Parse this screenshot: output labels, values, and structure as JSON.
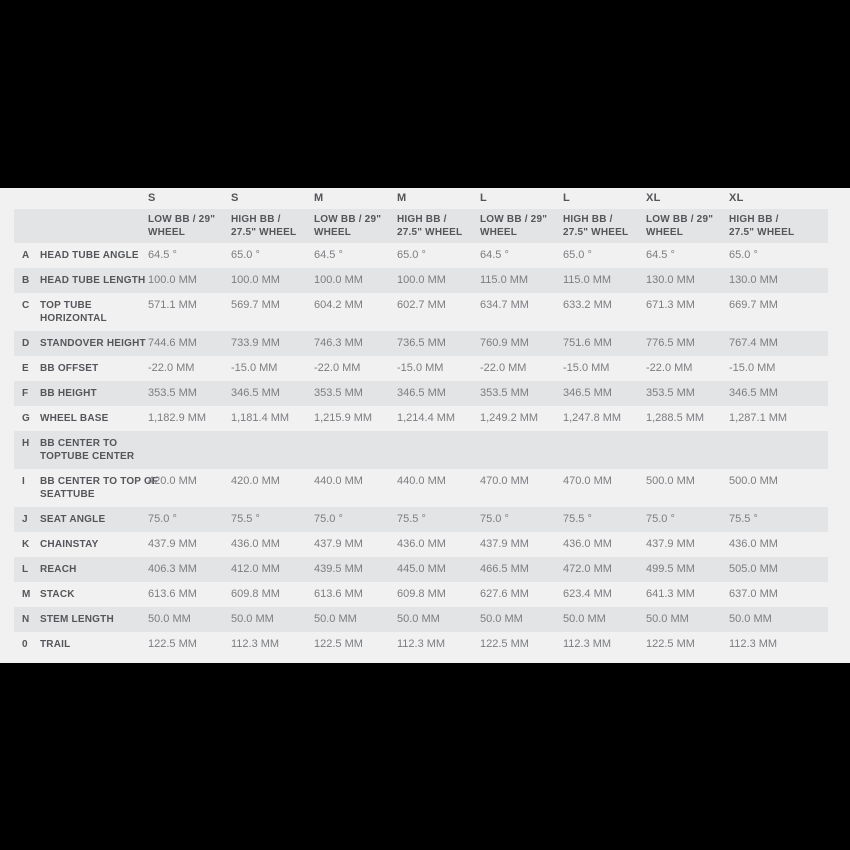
{
  "colors": {
    "page_background": "#000000",
    "content_background": "#f1f1f2",
    "band_background": "#e3e4e5",
    "label_text": "#54565a",
    "value_text": "#7b7d80"
  },
  "table": {
    "size_headers": [
      "S",
      "S",
      "M",
      "M",
      "L",
      "L",
      "XL",
      "XL"
    ],
    "config_headers": [
      [
        "LOW BB / 29\"",
        "WHEEL"
      ],
      [
        "HIGH BB /",
        "27.5\" WHEEL"
      ],
      [
        "LOW BB / 29\"",
        "WHEEL"
      ],
      [
        "HIGH BB /",
        "27.5\" WHEEL"
      ],
      [
        "LOW BB / 29\"",
        "WHEEL"
      ],
      [
        "HIGH BB /",
        "27.5\" WHEEL"
      ],
      [
        "LOW BB / 29\"",
        "WHEEL"
      ],
      [
        "HIGH BB /",
        "27.5\" WHEEL"
      ]
    ],
    "rows": [
      {
        "letter": "A",
        "name_lines": [
          "HEAD TUBE ANGLE"
        ],
        "values": [
          "64.5 °",
          "65.0 °",
          "64.5 °",
          "65.0 °",
          "64.5 °",
          "65.0 °",
          "64.5 °",
          "65.0 °"
        ]
      },
      {
        "letter": "B",
        "name_lines": [
          "HEAD TUBE LENGTH"
        ],
        "values": [
          "100.0 MM",
          "100.0 MM",
          "100.0 MM",
          "100.0 MM",
          "115.0 MM",
          "115.0 MM",
          "130.0 MM",
          "130.0 MM"
        ]
      },
      {
        "letter": "C",
        "name_lines": [
          "TOP TUBE",
          "HORIZONTAL"
        ],
        "values": [
          "571.1 MM",
          "569.7 MM",
          "604.2 MM",
          "602.7 MM",
          "634.7 MM",
          "633.2 MM",
          "671.3 MM",
          "669.7 MM"
        ]
      },
      {
        "letter": "D",
        "name_lines": [
          "STANDOVER HEIGHT"
        ],
        "values": [
          "744.6 MM",
          "733.9 MM",
          "746.3 MM",
          "736.5 MM",
          "760.9 MM",
          "751.6 MM",
          "776.5 MM",
          "767.4 MM"
        ]
      },
      {
        "letter": "E",
        "name_lines": [
          "BB OFFSET"
        ],
        "values": [
          "-22.0 MM",
          "-15.0 MM",
          "-22.0 MM",
          "-15.0 MM",
          "-22.0 MM",
          "-15.0 MM",
          "-22.0 MM",
          "-15.0 MM"
        ]
      },
      {
        "letter": "F",
        "name_lines": [
          "BB HEIGHT"
        ],
        "values": [
          "353.5 MM",
          "346.5 MM",
          "353.5 MM",
          "346.5 MM",
          "353.5 MM",
          "346.5 MM",
          "353.5 MM",
          "346.5 MM"
        ]
      },
      {
        "letter": "G",
        "name_lines": [
          "WHEEL BASE"
        ],
        "values": [
          "1,182.9 MM",
          "1,181.4 MM",
          "1,215.9 MM",
          "1,214.4 MM",
          "1,249.2 MM",
          "1,247.8 MM",
          "1,288.5 MM",
          "1,287.1 MM"
        ]
      },
      {
        "letter": "H",
        "name_lines": [
          "BB CENTER TO",
          "TOPTUBE CENTER"
        ],
        "values": [
          "",
          "",
          "",
          "",
          "",
          "",
          "",
          ""
        ]
      },
      {
        "letter": "I",
        "name_lines": [
          "BB CENTER TO TOP OF",
          "SEATTUBE"
        ],
        "values": [
          "420.0 MM",
          "420.0 MM",
          "440.0 MM",
          "440.0 MM",
          "470.0 MM",
          "470.0 MM",
          "500.0 MM",
          "500.0 MM"
        ]
      },
      {
        "letter": "J",
        "name_lines": [
          "SEAT ANGLE"
        ],
        "values": [
          "75.0 °",
          "75.5 °",
          "75.0 °",
          "75.5 °",
          "75.0 °",
          "75.5 °",
          "75.0 °",
          "75.5 °"
        ]
      },
      {
        "letter": "K",
        "name_lines": [
          "CHAINSTAY"
        ],
        "values": [
          "437.9 MM",
          "436.0 MM",
          "437.9 MM",
          "436.0 MM",
          "437.9 MM",
          "436.0 MM",
          "437.9 MM",
          "436.0 MM"
        ]
      },
      {
        "letter": "L",
        "name_lines": [
          "REACH"
        ],
        "values": [
          "406.3 MM",
          "412.0 MM",
          "439.5 MM",
          "445.0 MM",
          "466.5 MM",
          "472.0 MM",
          "499.5 MM",
          "505.0 MM"
        ]
      },
      {
        "letter": "M",
        "name_lines": [
          "STACK"
        ],
        "values": [
          "613.6 MM",
          "609.8 MM",
          "613.6 MM",
          "609.8 MM",
          "627.6 MM",
          "623.4 MM",
          "641.3 MM",
          "637.0 MM"
        ]
      },
      {
        "letter": "N",
        "name_lines": [
          "STEM LENGTH"
        ],
        "values": [
          "50.0 MM",
          "50.0 MM",
          "50.0 MM",
          "50.0 MM",
          "50.0 MM",
          "50.0 MM",
          "50.0 MM",
          "50.0 MM"
        ]
      },
      {
        "letter": "0",
        "name_lines": [
          "TRAIL"
        ],
        "values": [
          "122.5 MM",
          "112.3 MM",
          "122.5 MM",
          "112.3 MM",
          "122.5 MM",
          "112.3 MM",
          "122.5 MM",
          "112.3 MM"
        ]
      }
    ]
  }
}
